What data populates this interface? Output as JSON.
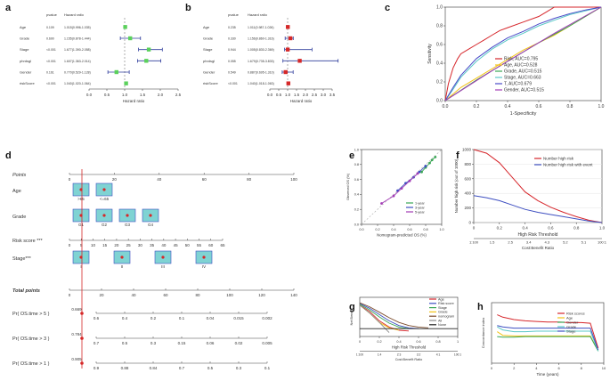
{
  "panel_labels": {
    "a": "a",
    "b": "b",
    "c": "c",
    "d": "d",
    "e": "e",
    "f": "f",
    "g": "g",
    "h": "h"
  },
  "chart_data": [
    {
      "id": "a",
      "type": "forest",
      "col_headers": {
        "pvalue": "pvalue",
        "hr": "Hazard ratio"
      },
      "xlabel": "Hazard ratio",
      "xlim": [
        0,
        2.5
      ],
      "xticks": [
        0,
        0.5,
        1,
        1.5,
        2,
        2.5
      ],
      "xtick_labels": [
        "0.0",
        "0.5",
        "1.0",
        "1.5",
        "2.0",
        "2.5"
      ],
      "rows": [
        {
          "name": "Age",
          "pvalue": "0.109",
          "hr_text": "1.015(0.996-1.035)",
          "hr": 1.015,
          "lo": 0.996,
          "hi": 1.035
        },
        {
          "name": "Grade",
          "pvalue": "0.690",
          "hr_text": "1.155(0.878-1.444)",
          "hr": 1.155,
          "lo": 0.878,
          "hi": 1.444
        },
        {
          "name": "Stage",
          "pvalue": "<0.001",
          "hr_text": "1.677(1.390-2.058)",
          "hr": 1.677,
          "lo": 1.39,
          "hi": 2.058
        },
        {
          "name": "phrdsgl",
          "pvalue": "<0.001",
          "hr_text": "1.607(1.363-2.014)",
          "hr": 1.607,
          "lo": 1.363,
          "hi": 2.014
        },
        {
          "name": "Gender",
          "pvalue": "0.161",
          "hr_text": "0.770(0.529-1.128)",
          "hr": 0.77,
          "lo": 0.529,
          "hi": 1.128
        },
        {
          "name": "riskScore",
          "pvalue": "<0.001",
          "hr_text": "1.040(1.020-1.064)",
          "hr": 1.04,
          "lo": 1.02,
          "hi": 1.064
        }
      ]
    },
    {
      "id": "b",
      "type": "forest",
      "col_headers": {
        "pvalue": "pvalue",
        "hr": "Hazard ratio"
      },
      "xlabel": "Hazard ratio",
      "xlim": [
        0,
        3.5
      ],
      "xticks": [
        0,
        0.5,
        1,
        1.5,
        2,
        2.5,
        3,
        3.5
      ],
      "xtick_labels": [
        "0.0",
        "0.5",
        "1.0",
        "1.5",
        "2.0",
        "2.5",
        "3.0",
        "3.5"
      ],
      "rows": [
        {
          "name": "Age",
          "pvalue": "0.235",
          "hr_text": "1.011(0.987-1.026)",
          "hr": 1.011,
          "lo": 0.987,
          "hi": 1.026
        },
        {
          "name": "Grade",
          "pvalue": "0.330",
          "hr_text": "1.156(0.860-1.316)",
          "hr": 1.156,
          "lo": 0.86,
          "hi": 1.316
        },
        {
          "name": "Stage",
          "pvalue": "0.944",
          "hr_text": "1.005(0.830-2.369)",
          "hr": 1.005,
          "lo": 0.83,
          "hi": 2.369
        },
        {
          "name": "phrdsgl",
          "pvalue": "0.055",
          "hr_text": "1.679(0.735-3.833)",
          "hr": 1.679,
          "lo": 0.735,
          "hi": 3.833
        },
        {
          "name": "Gender",
          "pvalue": "0.549",
          "hr_text": "0.887(0.695-1.310)",
          "hr": 0.887,
          "lo": 0.695,
          "hi": 1.31
        },
        {
          "name": "riskScore",
          "pvalue": "<0.001",
          "hr_text": "1.040(1.018-1.063)",
          "hr": 1.04,
          "lo": 1.018,
          "hi": 1.063
        }
      ]
    },
    {
      "id": "c",
      "type": "line",
      "title": "",
      "xlabel": "1-Specificity",
      "ylabel": "Sensitivity",
      "xlim": [
        0,
        1
      ],
      "ylim": [
        0,
        1
      ],
      "xticks": [
        0,
        0.2,
        0.4,
        0.6,
        0.8,
        1
      ],
      "xtick_labels": [
        "0.0",
        "0.2",
        "0.4",
        "0.6",
        "0.8",
        "1.0"
      ],
      "yticks": [
        0,
        0.2,
        0.4,
        0.6,
        0.8,
        1
      ],
      "ytick_labels": [
        "0.0",
        "0.2",
        "0.4",
        "0.6",
        "0.8",
        "1.0"
      ],
      "legend_position": "bottom-right",
      "series": [
        {
          "name": "Risk, AUC=0.795",
          "color": "#d6262b",
          "x": [
            0,
            0.02,
            0.05,
            0.08,
            0.1,
            0.15,
            0.2,
            0.25,
            0.3,
            0.35,
            0.4,
            0.5,
            0.6,
            0.65,
            0.7,
            0.8,
            0.9,
            1
          ],
          "y": [
            0,
            0.18,
            0.35,
            0.45,
            0.5,
            0.55,
            0.6,
            0.65,
            0.7,
            0.75,
            0.78,
            0.84,
            0.9,
            0.95,
            1,
            1,
            1,
            1
          ]
        },
        {
          "name": "Age, AUC=0.528",
          "color": "#f2c318",
          "x": [
            0,
            0.1,
            0.2,
            0.3,
            0.4,
            0.5,
            0.6,
            0.7,
            0.8,
            0.9,
            1
          ],
          "y": [
            0,
            0.14,
            0.24,
            0.34,
            0.44,
            0.54,
            0.62,
            0.7,
            0.8,
            0.9,
            1
          ]
        },
        {
          "name": "Grade, AUC=0.515",
          "color": "#3aa655",
          "x": [
            0,
            0.2,
            0.4,
            0.6,
            0.8,
            1
          ],
          "y": [
            0,
            0.22,
            0.42,
            0.62,
            0.8,
            1
          ]
        },
        {
          "name": "Stage, AUC=0.663",
          "color": "#5bc8c8",
          "x": [
            0,
            0.05,
            0.1,
            0.2,
            0.3,
            0.4,
            0.5,
            0.6,
            0.7,
            0.8,
            0.9,
            1
          ],
          "y": [
            0,
            0.12,
            0.25,
            0.42,
            0.55,
            0.65,
            0.72,
            0.8,
            0.86,
            0.92,
            0.96,
            1
          ]
        },
        {
          "name": "T, AUC=0.679",
          "color": "#4a4ac8",
          "x": [
            0,
            0.05,
            0.1,
            0.2,
            0.3,
            0.4,
            0.5,
            0.6,
            0.7,
            0.8,
            0.9,
            1
          ],
          "y": [
            0,
            0.14,
            0.27,
            0.45,
            0.57,
            0.67,
            0.74,
            0.82,
            0.88,
            0.93,
            0.97,
            1
          ]
        },
        {
          "name": "Gender, AUC=0.515",
          "color": "#a23bb5",
          "x": [
            0,
            0.3,
            0.5,
            0.7,
            1
          ],
          "y": [
            0,
            0.32,
            0.52,
            0.72,
            1
          ]
        }
      ]
    },
    {
      "id": "d",
      "type": "nomogram",
      "rows": [
        {
          "label": "Points",
          "ticks": [
            "0",
            "20",
            "40",
            "60",
            "80",
            "100"
          ]
        },
        {
          "label": "Age",
          "levels": [
            ">65",
            "<=65"
          ]
        },
        {
          "label": "Grade",
          "levels": [
            "G1",
            "G2",
            "G3",
            "G4"
          ]
        },
        {
          "label": "Risk score ***",
          "ticks": [
            "0",
            "5",
            "10",
            "15",
            "20",
            "25",
            "30",
            "35",
            "40",
            "45",
            "50",
            "55",
            "60",
            "65"
          ]
        },
        {
          "label": "Stage***",
          "levels": [
            "I",
            "II",
            "III",
            "IV"
          ]
        },
        {
          "label": "Total points",
          "ticks": [
            "0",
            "20",
            "40",
            "60",
            "80",
            "100",
            "120",
            "140"
          ]
        },
        {
          "label": "Pr( OS.time > 5 )",
          "prob": "0.669",
          "ticks": [
            "0.6",
            "0.4",
            "0.2",
            "0.1",
            "0.04",
            "0.015",
            "0.002"
          ]
        },
        {
          "label": "Pr( OS.time > 3 )",
          "prob": "0.784",
          "ticks": [
            "0.7",
            "0.5",
            "0.3",
            "0.15",
            "0.06",
            "0.02",
            "0.005"
          ]
        },
        {
          "label": "Pr( OS.time > 1 )",
          "prob": "0.905",
          "ticks": [
            "0.9",
            "0.88",
            "0.84",
            "0.7",
            "0.5",
            "0.3",
            "0.1"
          ]
        }
      ]
    },
    {
      "id": "e",
      "type": "line",
      "xlabel": "Nomogram-predicted OS (%)",
      "ylabel": "Observed OS (%)",
      "xlim": [
        0,
        1
      ],
      "ylim": [
        0,
        1
      ],
      "xticks": [
        0,
        0.2,
        0.4,
        0.6,
        0.8,
        1
      ],
      "xtick_labels": [
        "0.0",
        "0.2",
        "0.4",
        "0.6",
        "0.8",
        "1.0"
      ],
      "yticks": [
        0,
        0.2,
        0.4,
        0.6,
        0.8,
        1
      ],
      "ytick_labels": [
        "0.0",
        "0.2",
        "0.4",
        "0.6",
        "0.8",
        "1.0"
      ],
      "legend_position": "bottom-right",
      "series": [
        {
          "name": "1-year",
          "color": "#3aa655",
          "x": [
            0.75,
            0.8,
            0.85,
            0.88,
            0.92
          ],
          "y": [
            0.7,
            0.76,
            0.82,
            0.86,
            0.9
          ]
        },
        {
          "name": "3-year",
          "color": "#3e4fc1",
          "x": [
            0.45,
            0.55,
            0.65,
            0.72,
            0.8
          ],
          "y": [
            0.45,
            0.55,
            0.63,
            0.7,
            0.78
          ]
        },
        {
          "name": "5-year",
          "color": "#a23bb5",
          "x": [
            0.25,
            0.4,
            0.5,
            0.6,
            0.7
          ],
          "y": [
            0.28,
            0.38,
            0.48,
            0.58,
            0.68
          ]
        }
      ]
    },
    {
      "id": "f",
      "type": "line",
      "xlabel": "High Risk Threshold",
      "ylabel": "Number high risk (out of 1000)",
      "xlim": [
        0,
        1
      ],
      "ylim": [
        0,
        1000
      ],
      "xticks": [
        0,
        0.2,
        0.4,
        0.6,
        0.8,
        1
      ],
      "xtick_labels": [
        "0",
        "0.2",
        "0.4",
        "0.6",
        "0.8",
        "1.0"
      ],
      "yticks": [
        0,
        200,
        400,
        600,
        800,
        1000
      ],
      "ytick_labels": [
        "0",
        "200",
        "400",
        "600",
        "800",
        "1000"
      ],
      "xlabel2": "Cost:Benefit Ratio",
      "x2ticks": [
        "1:100",
        "1.5",
        "2.5",
        "3.4",
        "4.3",
        "5.2",
        "5.1",
        "100:1"
      ],
      "legend_position": "top-right",
      "series": [
        {
          "name": "Number high risk",
          "color": "#d6262b",
          "x": [
            0,
            0.1,
            0.2,
            0.3,
            0.4,
            0.5,
            0.6,
            0.7,
            0.8,
            0.9,
            1
          ],
          "y": [
            1000,
            950,
            820,
            620,
            420,
            300,
            210,
            140,
            80,
            30,
            0
          ]
        },
        {
          "name": "Number high risk with event",
          "color": "#3e4fc1",
          "x": [
            0,
            0.1,
            0.2,
            0.3,
            0.4,
            0.5,
            0.6,
            0.7,
            0.8,
            0.9,
            1
          ],
          "y": [
            370,
            340,
            300,
            240,
            180,
            140,
            110,
            80,
            50,
            20,
            0
          ]
        }
      ]
    },
    {
      "id": "g",
      "type": "line",
      "xlabel": "High Risk Threshold",
      "ylabel": "Net Benefit",
      "xlim": [
        0,
        1
      ],
      "ylim": [
        -0.1,
        0.4
      ],
      "xticks": [
        0,
        0.2,
        0.4,
        0.6,
        0.8,
        1
      ],
      "xtick_labels": [
        "0",
        "0.2",
        "0.4",
        "0.6",
        "0.8",
        "1"
      ],
      "yticks": [],
      "ytick_labels": [],
      "xlabel2": "Cost:Benefit Ratio",
      "x2ticks": [
        "1:100",
        "1:4",
        "2:3",
        "3:2",
        "4:1",
        "100:1"
      ],
      "legend_position": "top-right",
      "series": [
        {
          "name": "Age",
          "color": "#d6262b",
          "x": [
            0,
            0.1,
            0.2,
            0.3,
            0.4,
            0.5
          ],
          "y": [
            0.3,
            0.22,
            0.1,
            0.02,
            -0.02,
            -0.03
          ]
        },
        {
          "name": "Risk score",
          "color": "#3e4fc1",
          "x": [
            0,
            0.1,
            0.2,
            0.3,
            0.4,
            0.5,
            0.6
          ],
          "y": [
            0.32,
            0.26,
            0.18,
            0.1,
            0.04,
            0.01,
            0
          ]
        },
        {
          "name": "Stage",
          "color": "#3aa655",
          "x": [
            0,
            0.1,
            0.2,
            0.3,
            0.4,
            0.5
          ],
          "y": [
            0.31,
            0.24,
            0.15,
            0.07,
            0.02,
            0
          ]
        },
        {
          "name": "Grade",
          "color": "#f2c318",
          "x": [
            0,
            0.1,
            0.2,
            0.3,
            0.4
          ],
          "y": [
            0.3,
            0.2,
            0.08,
            0.01,
            -0.02
          ]
        },
        {
          "name": "nomogram",
          "color": "#7a4a2a",
          "x": [
            0,
            0.1,
            0.2,
            0.3,
            0.4,
            0.5,
            0.6,
            0.7
          ],
          "y": [
            0.33,
            0.28,
            0.21,
            0.14,
            0.08,
            0.04,
            0.02,
            0.01
          ]
        },
        {
          "name": "All",
          "color": "#888888",
          "x": [
            0,
            0.1,
            0.2,
            0.3
          ],
          "y": [
            0.3,
            0.2,
            0.08,
            -0.05
          ]
        },
        {
          "name": "None",
          "color": "#222222",
          "x": [
            0,
            1
          ],
          "y": [
            0,
            0
          ]
        }
      ]
    },
    {
      "id": "h",
      "type": "line",
      "xlabel": "Time (years)",
      "ylabel": "Concordance index",
      "xlim": [
        0,
        10
      ],
      "ylim": [
        0,
        1
      ],
      "xticks": [
        0,
        2,
        4,
        6,
        8,
        10
      ],
      "xtick_labels": [
        "0",
        "2",
        "4",
        "6",
        "8",
        "10"
      ],
      "yticks": [],
      "ytick_labels": [],
      "legend_position": "top-right",
      "series": [
        {
          "name": "Risk scores",
          "color": "#d6262b",
          "x": [
            0.5,
            1,
            2,
            3,
            4,
            5,
            6,
            7,
            8,
            8.8,
            9.5
          ],
          "y": [
            0.8,
            0.76,
            0.72,
            0.7,
            0.69,
            0.68,
            0.68,
            0.67,
            0.67,
            0.66,
            0.25
          ]
        },
        {
          "name": "Age",
          "color": "#f2c318",
          "x": [
            0.5,
            1,
            2,
            3,
            4,
            5,
            6,
            7,
            8,
            8.8,
            9.5
          ],
          "y": [
            0.52,
            0.46,
            0.45,
            0.45,
            0.45,
            0.45,
            0.45,
            0.45,
            0.45,
            0.45,
            0.2
          ]
        },
        {
          "name": "Gender",
          "color": "#3aa655",
          "x": [
            0.5,
            1,
            2,
            3,
            4,
            5,
            6,
            7,
            8,
            8.8,
            9.5
          ],
          "y": [
            0.44,
            0.43,
            0.43,
            0.44,
            0.44,
            0.44,
            0.44,
            0.44,
            0.44,
            0.44,
            0.2
          ]
        },
        {
          "name": "Grade",
          "color": "#5bc8c8",
          "x": [
            0.5,
            1,
            2,
            3,
            4,
            5,
            6,
            7,
            8,
            8.8,
            9.5
          ],
          "y": [
            0.6,
            0.55,
            0.52,
            0.52,
            0.53,
            0.53,
            0.53,
            0.53,
            0.53,
            0.53,
            0.2
          ]
        },
        {
          "name": "Stage",
          "color": "#3e4fc1",
          "x": [
            0.5,
            1,
            2,
            3,
            4,
            5,
            6,
            7,
            8,
            8.8,
            9.5
          ],
          "y": [
            0.62,
            0.6,
            0.58,
            0.58,
            0.58,
            0.58,
            0.58,
            0.58,
            0.58,
            0.58,
            0.22
          ]
        }
      ]
    }
  ]
}
